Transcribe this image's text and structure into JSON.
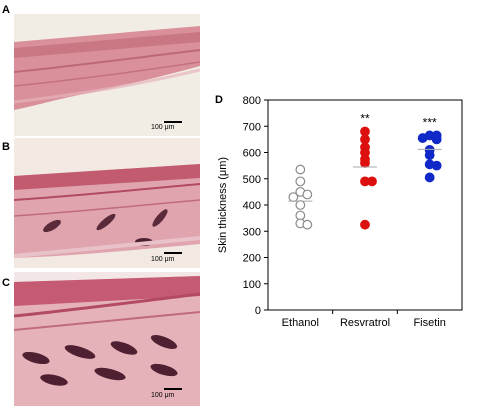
{
  "panels": [
    {
      "letter": "A",
      "scale": "100 μm"
    },
    {
      "letter": "B",
      "scale": "100 μm"
    },
    {
      "letter": "C",
      "scale": "100 μm"
    }
  ],
  "chart_panel_letter": "D",
  "chart_data": {
    "type": "scatter",
    "title": "",
    "xlabel": "",
    "ylabel": "Skin thickness (μm)",
    "ylim": [
      0,
      800
    ],
    "yticks": [
      "0",
      "100",
      "200",
      "300",
      "400",
      "500",
      "600",
      "700",
      "800"
    ],
    "categories": [
      "Ethanol",
      "Resvratrol",
      "Fisetin"
    ],
    "significance": [
      "",
      "**",
      "***"
    ],
    "colors": [
      "#ffffff",
      "#dd1010",
      "#1028c8"
    ],
    "edge_colors": [
      "#8a8a8a",
      "#dd1010",
      "#1028c8"
    ],
    "means": [
      415,
      545,
      612
    ],
    "series": [
      {
        "values": [
          535,
          490,
          450,
          440,
          430,
          400,
          360,
          330,
          325
        ]
      },
      {
        "values": [
          680,
          650,
          620,
          600,
          575,
          560,
          490,
          490,
          325
        ]
      },
      {
        "values": [
          665,
          665,
          655,
          650,
          610,
          590,
          555,
          550,
          505
        ]
      }
    ]
  }
}
